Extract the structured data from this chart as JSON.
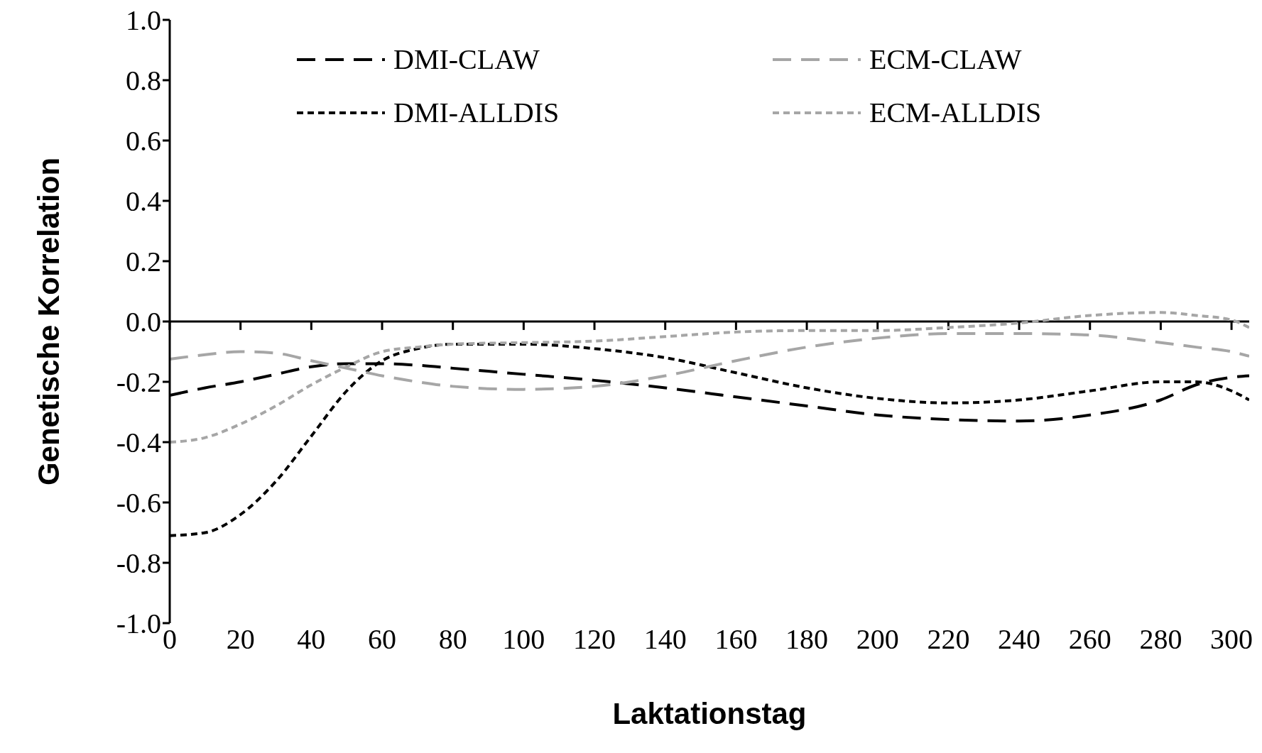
{
  "chart_data": {
    "type": "line",
    "xlabel": "Laktationstag",
    "ylabel": "Genetische Korrelation",
    "xlim": [
      0,
      305
    ],
    "xticks": [
      0,
      20,
      40,
      60,
      80,
      100,
      120,
      140,
      160,
      180,
      200,
      220,
      240,
      260,
      280,
      300
    ],
    "ylim": [
      -1.0,
      1.0
    ],
    "yticks": [
      {
        "value": -1.0,
        "label": "-1.0"
      },
      {
        "value": -0.8,
        "label": "-0.8"
      },
      {
        "value": -0.6,
        "label": "-0.6"
      },
      {
        "value": -0.4,
        "label": "-0.4"
      },
      {
        "value": -0.2,
        "label": "-0.2"
      },
      {
        "value": 0,
        "label": "0.0"
      },
      {
        "value": 0.2,
        "label": "0.2"
      },
      {
        "value": 0.4,
        "label": "0.4"
      },
      {
        "value": 0.6,
        "label": "0.6"
      },
      {
        "value": 0.8,
        "label": "0.8"
      },
      {
        "value": 1.0,
        "label": "1.0"
      }
    ],
    "x": [
      0,
      10,
      20,
      30,
      40,
      50,
      60,
      70,
      80,
      100,
      120,
      140,
      160,
      180,
      200,
      220,
      240,
      260,
      280,
      290,
      300,
      305
    ],
    "grid": false,
    "legend": "top",
    "marker": "none",
    "ref_lines": [
      {
        "axis": "y",
        "value": 0,
        "color": "#000000"
      }
    ],
    "series": [
      {
        "name": "DMI-CLAW",
        "color": "#000000",
        "line_style": "dashed",
        "values": [
          -0.245,
          -0.22,
          -0.2,
          -0.175,
          -0.15,
          -0.14,
          -0.14,
          -0.145,
          -0.155,
          -0.175,
          -0.195,
          -0.22,
          -0.25,
          -0.28,
          -0.31,
          -0.325,
          -0.33,
          -0.31,
          -0.26,
          -0.21,
          -0.185,
          -0.18
        ]
      },
      {
        "name": "DMI-ALLDIS",
        "color": "#000000",
        "line_style": "dotted",
        "values": [
          -0.71,
          -0.7,
          -0.64,
          -0.53,
          -0.38,
          -0.23,
          -0.13,
          -0.09,
          -0.075,
          -0.075,
          -0.09,
          -0.12,
          -0.17,
          -0.22,
          -0.255,
          -0.27,
          -0.26,
          -0.23,
          -0.2,
          -0.2,
          -0.23,
          -0.26
        ]
      },
      {
        "name": "ECM-CLAW",
        "color": "#a6a6a6",
        "line_style": "dashed",
        "values": [
          -0.125,
          -0.11,
          -0.1,
          -0.105,
          -0.13,
          -0.155,
          -0.18,
          -0.2,
          -0.215,
          -0.225,
          -0.215,
          -0.18,
          -0.13,
          -0.085,
          -0.055,
          -0.04,
          -0.04,
          -0.045,
          -0.07,
          -0.085,
          -0.1,
          -0.115
        ]
      },
      {
        "name": "ECM-ALLDIS",
        "color": "#a6a6a6",
        "line_style": "dotted",
        "values": [
          -0.4,
          -0.385,
          -0.34,
          -0.28,
          -0.21,
          -0.15,
          -0.1,
          -0.085,
          -0.075,
          -0.07,
          -0.065,
          -0.05,
          -0.035,
          -0.03,
          -0.03,
          -0.02,
          -0.005,
          0.02,
          0.03,
          0.02,
          0.005,
          -0.02
        ]
      }
    ]
  }
}
